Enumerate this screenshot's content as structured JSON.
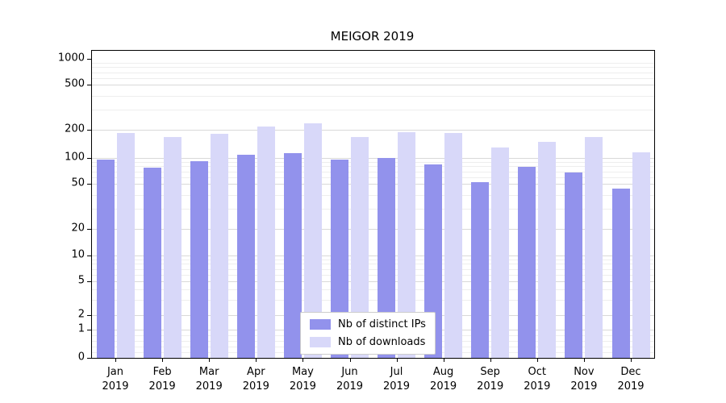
{
  "chart_data": {
    "type": "bar",
    "title": "MEIGOR 2019",
    "categories": [
      "Jan",
      "Feb",
      "Mar",
      "Apr",
      "May",
      "Jun",
      "Jul",
      "Aug",
      "Sep",
      "Oct",
      "Nov",
      "Dec"
    ],
    "year": "2019",
    "x_tick_labels": [
      "Jan\n2019",
      "Feb\n2019",
      "Mar\n2019",
      "Apr\n2019",
      "May\n2019",
      "Jun\n2019",
      "Jul\n2019",
      "Aug\n2019",
      "Sep\n2019",
      "Oct\n2019",
      "Nov\n2019",
      "Dec\n2019"
    ],
    "series": [
      {
        "name": "Nb of distinct IPs",
        "color": "#9292ec",
        "values": [
          95,
          78,
          92,
          108,
          112,
          96,
          100,
          85,
          52,
          79,
          68,
          45
        ]
      },
      {
        "name": "Nb of downloads",
        "color": "#d8d8f9",
        "values": [
          185,
          168,
          180,
          213,
          228,
          168,
          190,
          185,
          130,
          150,
          168,
          115
        ]
      }
    ],
    "y_scale": "symlog",
    "y_ticks": [
      0,
      1,
      2,
      5,
      10,
      20,
      50,
      100,
      200,
      500,
      1000
    ],
    "y_minor_ticks": [
      0.2,
      0.4,
      0.6,
      0.8,
      3,
      4,
      6,
      7,
      8,
      9,
      30,
      40,
      60,
      70,
      80,
      90,
      300,
      400,
      600,
      700,
      800,
      900
    ],
    "ylim": [
      0,
      1000
    ],
    "grid": true,
    "legend_position": "lower center"
  }
}
